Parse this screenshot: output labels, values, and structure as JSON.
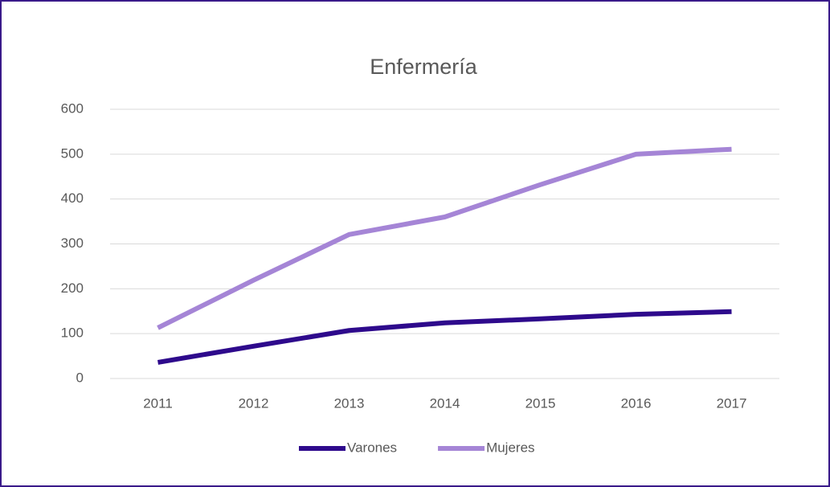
{
  "chart_data": {
    "type": "line",
    "title": "Enfermería",
    "categories": [
      "2011",
      "2012",
      "2013",
      "2014",
      "2015",
      "2016",
      "2017"
    ],
    "series": [
      {
        "name": "Varones",
        "color": "#2e0a8c",
        "values": [
          36,
          72,
          107,
          124,
          133,
          143,
          149
        ]
      },
      {
        "name": "Mujeres",
        "color": "#a585d6",
        "values": [
          113,
          219,
          321,
          360,
          432,
          500,
          511
        ]
      }
    ],
    "ylim": [
      0,
      600
    ],
    "yticks": [
      0,
      100,
      200,
      300,
      400,
      500,
      600
    ],
    "grid": true,
    "legend": "bottom"
  }
}
